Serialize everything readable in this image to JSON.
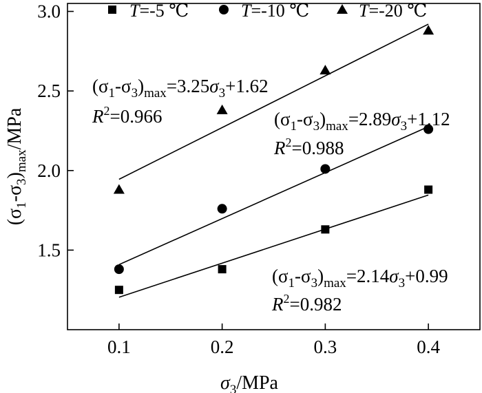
{
  "chart_data": {
    "type": "scatter",
    "xlabel": {
      "symbol": "σ",
      "sub": "3",
      "unit": "/MPa"
    },
    "ylabel": {
      "lead": "(σ",
      "sub1": "1",
      "mid": "-σ",
      "sub2": "3",
      "close": ")",
      "sub3": "max",
      "unit": "/MPa"
    },
    "xlim": [
      0.05,
      0.45
    ],
    "ylim": [
      1.0,
      3.05
    ],
    "xticks": [
      0.1,
      0.2,
      0.3,
      0.4
    ],
    "xtick_labels": [
      "0.1",
      "0.2",
      "0.3",
      "0.4"
    ],
    "yticks": [
      1.5,
      2.0,
      2.5,
      3.0
    ],
    "ytick_labels": [
      "1.5",
      "2.0",
      "2.5",
      "3.0"
    ],
    "grid": false,
    "legend_position": "top",
    "series": [
      {
        "name": "T=-5 ℃",
        "legend_prefix": "T",
        "legend_suffix": "=-5 ℃",
        "marker": "square",
        "x": [
          0.1,
          0.2,
          0.3,
          0.4
        ],
        "y": [
          1.25,
          1.38,
          1.63,
          1.88
        ],
        "fit": {
          "slope": 2.14,
          "intercept": 0.99,
          "x_range": [
            0.1,
            0.4
          ]
        },
        "equation": {
          "coef": "2.14",
          "const": "+0.99",
          "r2": "0.982"
        }
      },
      {
        "name": "T=-10 ℃",
        "legend_prefix": "T",
        "legend_suffix": "=-10 ℃",
        "marker": "circle",
        "x": [
          0.1,
          0.2,
          0.3,
          0.4
        ],
        "y": [
          1.38,
          1.76,
          2.01,
          2.26
        ],
        "fit": {
          "slope": 2.89,
          "intercept": 1.12,
          "x_range": [
            0.1,
            0.4
          ]
        },
        "equation": {
          "coef": "2.89",
          "const": "+1.12",
          "r2": "0.988"
        }
      },
      {
        "name": "T=-20 ℃",
        "legend_prefix": "T",
        "legend_suffix": "=-20 ℃",
        "marker": "triangle",
        "x": [
          0.1,
          0.2,
          0.3,
          0.4
        ],
        "y": [
          1.88,
          2.38,
          2.63,
          2.88
        ],
        "fit": {
          "slope": 3.25,
          "intercept": 1.62,
          "x_range": [
            0.1,
            0.4
          ]
        },
        "equation": {
          "coef": "3.25",
          "const": "+1.62",
          "r2": "0.966"
        }
      }
    ],
    "equation_template": {
      "lead": "(σ",
      "sub1": "1",
      "mid": "-σ",
      "sub2": "3",
      "close": ")",
      "sub3": "max",
      "eq": "=",
      "sigma": "σ",
      "sigma_sub": "3",
      "r_symbol": "R",
      "r_sup": "2",
      "r_eq": "="
    }
  }
}
